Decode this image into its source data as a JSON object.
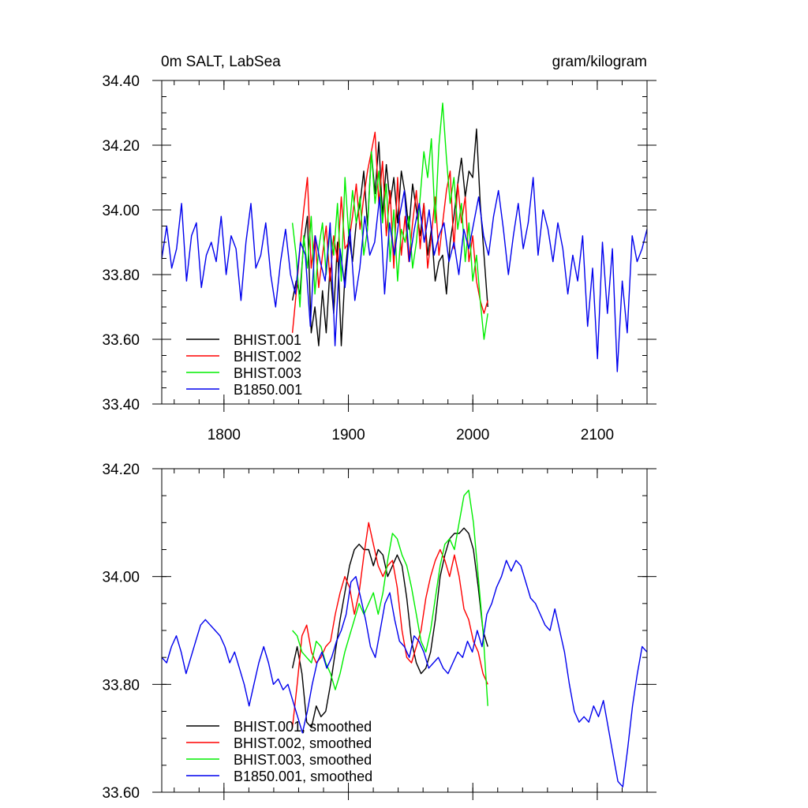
{
  "chart_data": [
    {
      "type": "line",
      "title": "0m SALT, LabSea",
      "units": "gram/kilogram",
      "xlim": [
        1750,
        2140
      ],
      "ylim": [
        33.4,
        34.4
      ],
      "xticks": [
        {
          "value": 1800,
          "label": "1800"
        },
        {
          "value": 1900,
          "label": "1900"
        },
        {
          "value": 2000,
          "label": "2000"
        },
        {
          "value": 2100,
          "label": "2100"
        }
      ],
      "yticks": [
        {
          "value": 33.4,
          "label": "33.40"
        },
        {
          "value": 33.6,
          "label": "33.60"
        },
        {
          "value": 33.8,
          "label": "33.80"
        },
        {
          "value": 34.0,
          "label": "34.00"
        },
        {
          "value": 34.2,
          "label": "34.20"
        },
        {
          "value": 34.4,
          "label": "34.40"
        }
      ],
      "legend_position": "bottom-left",
      "series": [
        {
          "name": "BHIST.001",
          "color": "#000000",
          "x_start": 1855,
          "x_end": 2012,
          "values": [
            33.72,
            33.78,
            33.74,
            33.9,
            33.98,
            33.62,
            33.7,
            33.58,
            33.75,
            33.62,
            33.82,
            33.68,
            33.9,
            33.58,
            33.8,
            33.92,
            33.84,
            33.96,
            34.02,
            34.12,
            33.95,
            34.18,
            34.05,
            34.21,
            33.98,
            34.14,
            34.02,
            34.1,
            33.96,
            34.12,
            34.05,
            33.94,
            34.08,
            34.0,
            33.92,
            34.02,
            33.86,
            33.94,
            33.78,
            33.84,
            33.86,
            33.74,
            33.9,
            33.98,
            34.08,
            34.16,
            34.04,
            34.12,
            34.1,
            34.25,
            34.02,
            33.86,
            33.7
          ]
        },
        {
          "name": "BHIST.002",
          "color": "#ff0000",
          "x_start": 1855,
          "x_end": 2012,
          "values": [
            33.62,
            33.74,
            33.88,
            34.0,
            34.1,
            33.82,
            33.92,
            33.76,
            33.86,
            33.95,
            33.78,
            33.92,
            33.84,
            34.04,
            33.88,
            33.9,
            33.98,
            34.08,
            33.94,
            34.04,
            34.12,
            34.18,
            34.24,
            34.02,
            34.15,
            33.92,
            34.06,
            33.82,
            34.1,
            33.86,
            33.98,
            33.84,
            33.96,
            34.06,
            33.88,
            34.02,
            33.82,
            33.92,
            34.04,
            33.86,
            33.96,
            34.06,
            34.12,
            33.88,
            34.08,
            33.96,
            34.04,
            33.84,
            33.92,
            33.78,
            33.72,
            33.68,
            33.72
          ]
        },
        {
          "name": "BHIST.003",
          "color": "#00ee00",
          "x_start": 1855,
          "x_end": 2012,
          "values": [
            33.96,
            33.86,
            33.7,
            33.92,
            33.82,
            33.98,
            33.74,
            33.88,
            33.96,
            33.8,
            33.94,
            33.86,
            34.02,
            33.78,
            34.1,
            33.92,
            34.06,
            33.96,
            34.04,
            33.86,
            33.94,
            34.18,
            34.02,
            34.12,
            33.96,
            34.08,
            33.84,
            34.0,
            33.78,
            33.94,
            33.9,
            33.98,
            33.82,
            33.9,
            34.04,
            34.18,
            34.1,
            34.22,
            33.96,
            34.2,
            34.33,
            34.16,
            34.02,
            34.1,
            33.94,
            34.02,
            33.84,
            33.96,
            33.78,
            33.86,
            33.72,
            33.6,
            33.68
          ]
        },
        {
          "name": "B1850.001",
          "color": "#0000ee",
          "x_start": 1750,
          "x_end": 2140,
          "values": [
            33.85,
            33.95,
            33.82,
            33.88,
            34.02,
            33.78,
            33.92,
            33.96,
            33.76,
            33.86,
            33.9,
            33.84,
            33.98,
            33.8,
            33.92,
            33.88,
            33.72,
            33.9,
            34.02,
            33.82,
            33.86,
            33.96,
            33.8,
            33.7,
            33.84,
            33.94,
            33.8,
            33.74,
            33.9,
            33.86,
            33.64,
            33.92,
            33.84,
            33.78,
            33.96,
            33.58,
            33.88,
            33.76,
            33.94,
            33.72,
            33.82,
            33.98,
            33.86,
            33.9,
            34.04,
            33.74,
            33.96,
            33.86,
            33.98,
            34.06,
            33.84,
            33.94,
            34.02,
            33.9,
            34.0,
            33.86,
            33.92,
            33.96,
            33.84,
            33.9,
            33.8,
            33.94,
            33.88,
            33.96,
            34.04,
            33.92,
            33.86,
            33.98,
            34.06,
            33.94,
            33.8,
            33.92,
            34.02,
            33.88,
            33.96,
            34.1,
            33.86,
            34.0,
            33.94,
            33.84,
            33.96,
            33.88,
            33.74,
            33.86,
            33.78,
            33.92,
            33.64,
            33.82,
            33.54,
            33.9,
            33.68,
            33.88,
            33.5,
            33.78,
            33.62,
            33.92,
            33.84,
            33.88,
            33.94
          ]
        }
      ]
    },
    {
      "type": "line",
      "title": "",
      "units": "",
      "xlim": [
        1750,
        2140
      ],
      "ylim": [
        33.6,
        34.2
      ],
      "xticks": [
        {
          "value": 1800,
          "label": ""
        },
        {
          "value": 1900,
          "label": ""
        },
        {
          "value": 2000,
          "label": ""
        },
        {
          "value": 2100,
          "label": ""
        }
      ],
      "yticks": [
        {
          "value": 33.6,
          "label": "33.60"
        },
        {
          "value": 33.8,
          "label": "33.80"
        },
        {
          "value": 34.0,
          "label": "34.00"
        },
        {
          "value": 34.2,
          "label": "34.20"
        }
      ],
      "legend_position": "bottom-left",
      "series": [
        {
          "name": "BHIST.001, smoothed",
          "color": "#000000",
          "x_start": 1855,
          "x_end": 2012,
          "values": [
            33.83,
            33.87,
            33.82,
            33.73,
            33.72,
            33.76,
            33.74,
            33.75,
            33.8,
            33.86,
            33.92,
            33.97,
            34.02,
            34.05,
            34.06,
            34.05,
            34.05,
            34.02,
            34.05,
            34.04,
            34.0,
            34.02,
            34.04,
            34.02,
            33.96,
            33.88,
            33.84,
            33.82,
            33.83,
            33.86,
            33.92,
            34.0,
            34.04,
            34.07,
            34.08,
            34.08,
            34.09,
            34.08,
            34.05,
            33.98,
            33.9,
            33.87
          ]
        },
        {
          "name": "BHIST.002, smoothed",
          "color": "#ff0000",
          "x_start": 1855,
          "x_end": 2012,
          "values": [
            33.72,
            33.8,
            33.89,
            33.91,
            33.86,
            33.84,
            33.85,
            33.87,
            33.88,
            33.93,
            33.97,
            34.0,
            33.98,
            33.93,
            33.97,
            34.04,
            34.1,
            34.06,
            34.02,
            34.0,
            34.02,
            34.03,
            33.98,
            33.9,
            33.85,
            33.84,
            33.87,
            33.9,
            33.96,
            34.0,
            34.03,
            34.05,
            34.03,
            34.0,
            34.04,
            34.0,
            33.94,
            33.92,
            33.88,
            33.86,
            33.82,
            33.8
          ]
        },
        {
          "name": "BHIST.003, smoothed",
          "color": "#00ee00",
          "x_start": 1855,
          "x_end": 2012,
          "values": [
            33.9,
            33.89,
            33.86,
            33.85,
            33.84,
            33.88,
            33.87,
            33.84,
            33.82,
            33.79,
            33.82,
            33.86,
            33.89,
            33.92,
            33.95,
            33.93,
            33.95,
            33.97,
            33.93,
            33.97,
            34.03,
            34.08,
            34.07,
            34.04,
            34.02,
            33.98,
            33.93,
            33.88,
            33.86,
            33.9,
            33.96,
            34.02,
            34.06,
            34.07,
            34.05,
            34.1,
            34.15,
            34.16,
            34.1,
            34.0,
            33.9,
            33.76
          ]
        },
        {
          "name": "B1850.001, smoothed",
          "color": "#0000ee",
          "x_start": 1750,
          "x_end": 2140,
          "values": [
            33.85,
            33.84,
            33.87,
            33.89,
            33.86,
            33.82,
            33.85,
            33.88,
            33.91,
            33.92,
            33.91,
            33.9,
            33.89,
            33.87,
            33.84,
            33.86,
            33.83,
            33.8,
            33.76,
            33.8,
            33.84,
            33.87,
            33.84,
            33.8,
            33.81,
            33.79,
            33.8,
            33.77,
            33.74,
            33.71,
            33.75,
            33.8,
            33.84,
            33.86,
            33.83,
            33.85,
            33.88,
            33.9,
            33.93,
            33.99,
            34.0,
            33.96,
            33.92,
            33.87,
            33.85,
            33.9,
            33.95,
            33.97,
            33.92,
            33.88,
            33.87,
            33.85,
            33.89,
            33.88,
            33.86,
            33.83,
            33.84,
            33.85,
            33.83,
            33.82,
            33.84,
            33.86,
            33.85,
            33.88,
            33.86,
            33.9,
            33.87,
            33.93,
            33.95,
            33.98,
            34.0,
            34.03,
            34.01,
            34.03,
            34.02,
            33.99,
            33.96,
            33.95,
            33.93,
            33.91,
            33.9,
            33.94,
            33.9,
            33.86,
            33.8,
            33.75,
            33.73,
            33.74,
            33.73,
            33.76,
            33.74,
            33.77,
            33.72,
            33.67,
            33.62,
            33.61,
            33.68,
            33.76,
            33.82,
            33.87,
            33.86
          ]
        }
      ]
    }
  ]
}
